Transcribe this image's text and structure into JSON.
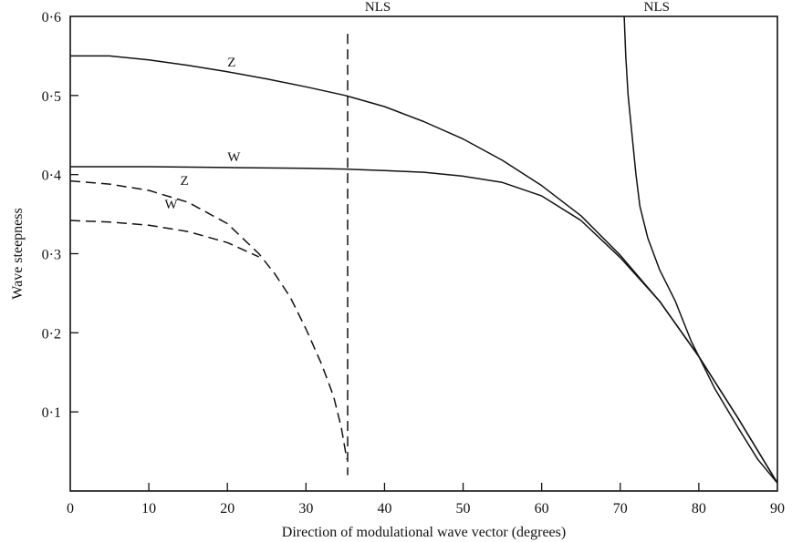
{
  "chart_data": {
    "type": "line",
    "title": "",
    "xlabel": "Direction of modulational wave vector (degrees)",
    "ylabel": "Wave steepness",
    "xlim": [
      0,
      90
    ],
    "ylim": [
      0,
      0.6
    ],
    "grid": false,
    "x_ticks": [
      {
        "value": 0,
        "label": "0"
      },
      {
        "value": 10,
        "label": "10"
      },
      {
        "value": 20,
        "label": "20"
      },
      {
        "value": 30,
        "label": "30"
      },
      {
        "value": 40,
        "label": "40"
      },
      {
        "value": 50,
        "label": "50"
      },
      {
        "value": 60,
        "label": "60"
      },
      {
        "value": 70,
        "label": "70"
      },
      {
        "value": 80,
        "label": "80"
      },
      {
        "value": 90,
        "label": "90"
      }
    ],
    "y_ticks": [
      {
        "value": 0.1,
        "label": "0·1"
      },
      {
        "value": 0.2,
        "label": "0·2"
      },
      {
        "value": 0.3,
        "label": "0·3"
      },
      {
        "value": 0.4,
        "label": "0·4"
      },
      {
        "value": 0.5,
        "label": "0·5"
      },
      {
        "value": 0.6,
        "label": "0·6"
      }
    ],
    "series": [
      {
        "name": "Z",
        "style": "solid",
        "points": [
          [
            0,
            0.55
          ],
          [
            5,
            0.55
          ],
          [
            10,
            0.545
          ],
          [
            15,
            0.538
          ],
          [
            20,
            0.53
          ],
          [
            25,
            0.521
          ],
          [
            30,
            0.511
          ],
          [
            35,
            0.5
          ],
          [
            40,
            0.486
          ],
          [
            45,
            0.467
          ],
          [
            50,
            0.445
          ],
          [
            55,
            0.418
          ],
          [
            60,
            0.386
          ],
          [
            65,
            0.348
          ],
          [
            70,
            0.298
          ],
          [
            75,
            0.24
          ],
          [
            80,
            0.17
          ],
          [
            85,
            0.092
          ],
          [
            90,
            0.01
          ]
        ],
        "label_at": [
          20,
          0.53
        ]
      },
      {
        "name": "W",
        "style": "solid",
        "points": [
          [
            0,
            0.41
          ],
          [
            10,
            0.41
          ],
          [
            20,
            0.409
          ],
          [
            30,
            0.408
          ],
          [
            35,
            0.407
          ],
          [
            40,
            0.405
          ],
          [
            45,
            0.403
          ],
          [
            50,
            0.398
          ],
          [
            55,
            0.39
          ],
          [
            60,
            0.373
          ],
          [
            65,
            0.342
          ],
          [
            70,
            0.295
          ],
          [
            75,
            0.24
          ],
          [
            80,
            0.17
          ],
          [
            85,
            0.092
          ],
          [
            90,
            0.01
          ]
        ],
        "label_at": [
          20,
          0.41
        ]
      },
      {
        "name": "NLS",
        "style": "solid",
        "points": [
          [
            70.5,
            0.6
          ],
          [
            70.7,
            0.55
          ],
          [
            71,
            0.5
          ],
          [
            71.5,
            0.45
          ],
          [
            72,
            0.4
          ],
          [
            72.5,
            0.36
          ],
          [
            73.5,
            0.32
          ],
          [
            75,
            0.28
          ],
          [
            77,
            0.24
          ],
          [
            79,
            0.19
          ],
          [
            82,
            0.13
          ],
          [
            85,
            0.08
          ],
          [
            87.5,
            0.04
          ],
          [
            90,
            0.01
          ]
        ],
        "label_at": [
          73,
          0.6
        ]
      },
      {
        "name": "Z",
        "style": "dashed",
        "points": [
          [
            0,
            0.392
          ],
          [
            5,
            0.388
          ],
          [
            10,
            0.38
          ],
          [
            15,
            0.365
          ],
          [
            20,
            0.338
          ],
          [
            24,
            0.3
          ],
          [
            26,
            0.275
          ],
          [
            28,
            0.245
          ],
          [
            30,
            0.205
          ],
          [
            32,
            0.16
          ],
          [
            33.5,
            0.12
          ],
          [
            34.5,
            0.08
          ],
          [
            35.2,
            0.04
          ]
        ],
        "label_at": [
          14,
          0.38
        ]
      },
      {
        "name": "W",
        "style": "dashed",
        "points": [
          [
            0,
            0.342
          ],
          [
            5,
            0.34
          ],
          [
            10,
            0.336
          ],
          [
            15,
            0.328
          ],
          [
            20,
            0.314
          ],
          [
            24,
            0.296
          ]
        ],
        "label_at": [
          12,
          0.35
        ]
      },
      {
        "name": "NLS",
        "style": "dashed",
        "points": [
          [
            35.3,
            0.578
          ],
          [
            35.3,
            0.02
          ]
        ],
        "label_at": [
          37.5,
          0.6
        ]
      }
    ]
  }
}
